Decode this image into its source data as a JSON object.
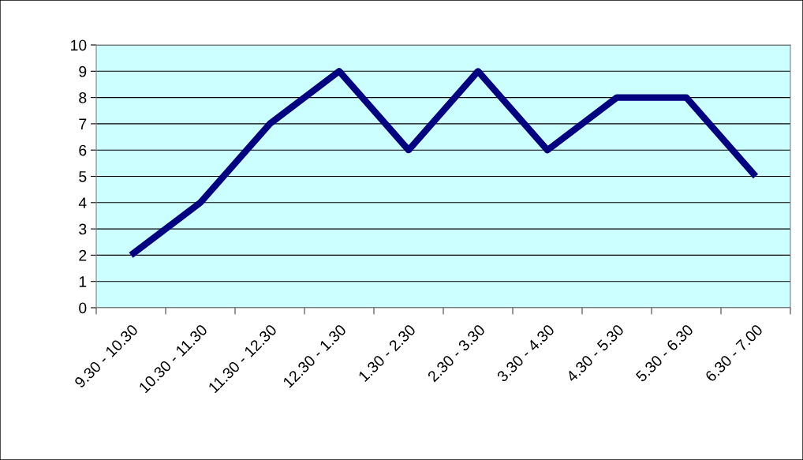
{
  "chart_data": {
    "type": "line",
    "categories": [
      "9.30 - 10.30",
      "10.30 - 11.30",
      "11.30 - 12.30",
      "12.30 - 1.30",
      "1.30 - 2.30",
      "2.30 - 3.30",
      "3.30 - 4.30",
      "4.30 - 5.30",
      "5.30 - 6.30",
      "6.30 - 7.00"
    ],
    "series": [
      {
        "color": "#000080",
        "values": [
          2,
          4,
          7,
          9,
          6,
          9,
          6,
          8,
          8,
          5
        ]
      }
    ],
    "ylim": [
      0,
      10
    ],
    "yticks": [
      0,
      1,
      2,
      3,
      4,
      5,
      6,
      7,
      8,
      9,
      10
    ],
    "grid": "y",
    "legend": false,
    "marker": "none",
    "line_style": "solid"
  }
}
